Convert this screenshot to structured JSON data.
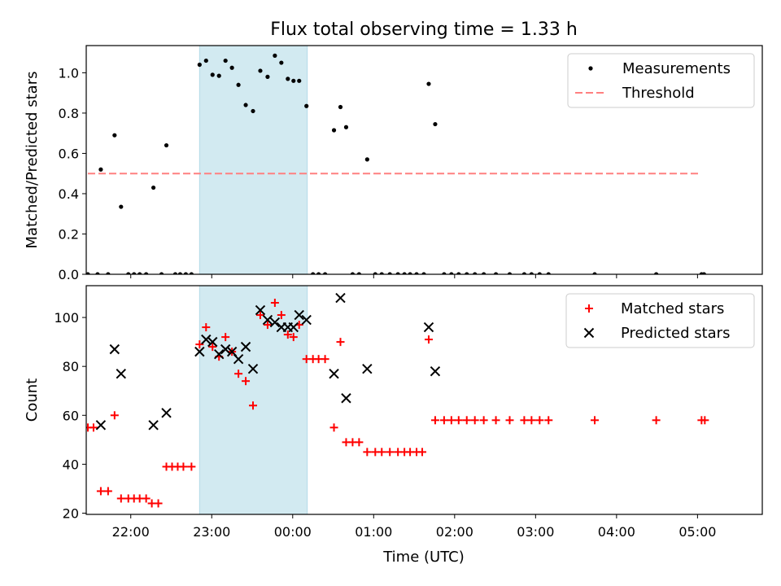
{
  "chart_data": [
    {
      "type": "scatter",
      "title": "Flux total observing time = 1.33 h",
      "ylabel": "Matched/Predicted stars",
      "xlabel": "",
      "xlim": [
        -2.55,
        5.8
      ],
      "ylim": [
        0,
        1.135
      ],
      "yticks": [
        "0.0",
        "0.2",
        "0.4",
        "0.6",
        "0.8",
        "1.0"
      ],
      "ytick_values": [
        0,
        0.2,
        0.4,
        0.6,
        0.8,
        1.0
      ],
      "shaded_span": [
        -1.15,
        0.18
      ],
      "shade_color": "#add8e6",
      "threshold": {
        "name": "Threshold",
        "value": 0.5,
        "x_start": -2.53,
        "x_end": 5.03,
        "color": "#ff8080"
      },
      "legend": {
        "position": "top-right",
        "entries": [
          "Measurements",
          "Threshold"
        ]
      },
      "series": [
        {
          "name": "Measurements",
          "marker": "dot",
          "color": "#000000",
          "points": [
            [
              -2.53,
              0
            ],
            [
              -2.41,
              0
            ],
            [
              -2.28,
              0
            ],
            [
              -2.37,
              0.52
            ],
            [
              -2.2,
              0.69
            ],
            [
              -2.12,
              0.335
            ],
            [
              -2.03,
              0
            ],
            [
              -1.96,
              0
            ],
            [
              -1.89,
              0
            ],
            [
              -1.81,
              0
            ],
            [
              -1.72,
              0.43
            ],
            [
              -1.62,
              0
            ],
            [
              -1.56,
              0.64
            ],
            [
              -1.45,
              0
            ],
            [
              -1.39,
              0
            ],
            [
              -1.32,
              0
            ],
            [
              -1.25,
              0
            ],
            [
              -1.15,
              1.04
            ],
            [
              -1.07,
              1.06
            ],
            [
              -0.99,
              0.99
            ],
            [
              -0.91,
              0.985
            ],
            [
              -0.83,
              1.06
            ],
            [
              -0.75,
              1.025
            ],
            [
              -0.67,
              0.94
            ],
            [
              -0.58,
              0.84
            ],
            [
              -0.49,
              0.81
            ],
            [
              -0.4,
              1.01
            ],
            [
              -0.31,
              0.98
            ],
            [
              -0.22,
              1.085
            ],
            [
              -0.14,
              1.05
            ],
            [
              -0.06,
              0.97
            ],
            [
              0.01,
              0.96
            ],
            [
              0.08,
              0.96
            ],
            [
              0.17,
              0.835
            ],
            [
              0.25,
              0
            ],
            [
              0.32,
              0
            ],
            [
              0.4,
              0
            ],
            [
              0.51,
              0.715
            ],
            [
              0.59,
              0.83
            ],
            [
              0.66,
              0.73
            ],
            [
              0.74,
              0
            ],
            [
              0.82,
              0
            ],
            [
              0.92,
              0.57
            ],
            [
              1.02,
              0
            ],
            [
              1.1,
              0
            ],
            [
              1.2,
              0
            ],
            [
              1.3,
              0
            ],
            [
              1.38,
              0
            ],
            [
              1.45,
              0
            ],
            [
              1.53,
              0
            ],
            [
              1.62,
              0
            ],
            [
              1.68,
              0.945
            ],
            [
              1.76,
              0.745
            ],
            [
              1.87,
              0
            ],
            [
              1.96,
              0
            ],
            [
              2.05,
              0
            ],
            [
              2.15,
              0
            ],
            [
              2.25,
              0
            ],
            [
              2.36,
              0
            ],
            [
              2.51,
              0
            ],
            [
              2.68,
              0
            ],
            [
              2.86,
              0
            ],
            [
              2.95,
              0
            ],
            [
              3.05,
              0
            ],
            [
              3.16,
              0
            ],
            [
              3.73,
              0
            ],
            [
              4.49,
              0
            ],
            [
              5.05,
              0
            ],
            [
              5.08,
              0
            ]
          ]
        }
      ]
    },
    {
      "type": "scatter",
      "title": "",
      "ylabel": "Count",
      "xlabel": "Time (UTC)",
      "xlim": [
        -2.55,
        5.8
      ],
      "ylim": [
        19.5,
        113
      ],
      "yticks": [
        "20",
        "40",
        "60",
        "80",
        "100"
      ],
      "ytick_values": [
        20,
        40,
        60,
        80,
        100
      ],
      "xticks": [
        "22:00",
        "23:00",
        "00:00",
        "01:00",
        "02:00",
        "03:00",
        "04:00",
        "05:00"
      ],
      "xtick_values": [
        -2,
        -1,
        0,
        1,
        2,
        3,
        4,
        5
      ],
      "shaded_span": [
        -1.15,
        0.18
      ],
      "shade_color": "#add8e6",
      "legend": {
        "position": "top-right",
        "entries": [
          "Matched stars",
          "Predicted stars"
        ]
      },
      "series": [
        {
          "name": "Matched stars",
          "marker": "plus",
          "color": "#ff0000",
          "points": [
            [
              -2.53,
              55
            ],
            [
              -2.46,
              55
            ],
            [
              -2.37,
              29
            ],
            [
              -2.28,
              29
            ],
            [
              -2.2,
              60
            ],
            [
              -2.12,
              26
            ],
            [
              -2.03,
              26
            ],
            [
              -1.96,
              26
            ],
            [
              -1.89,
              26
            ],
            [
              -1.81,
              26
            ],
            [
              -1.74,
              24
            ],
            [
              -1.66,
              24
            ],
            [
              -1.56,
              39
            ],
            [
              -1.49,
              39
            ],
            [
              -1.42,
              39
            ],
            [
              -1.35,
              39
            ],
            [
              -1.25,
              39
            ],
            [
              -1.15,
              89
            ],
            [
              -1.07,
              96
            ],
            [
              -0.99,
              88
            ],
            [
              -0.91,
              84
            ],
            [
              -0.83,
              92
            ],
            [
              -0.75,
              86
            ],
            [
              -0.67,
              77
            ],
            [
              -0.58,
              74
            ],
            [
              -0.49,
              64
            ],
            [
              -0.4,
              101
            ],
            [
              -0.31,
              97
            ],
            [
              -0.22,
              106
            ],
            [
              -0.14,
              101
            ],
            [
              -0.06,
              93
            ],
            [
              0.01,
              92
            ],
            [
              0.08,
              97
            ],
            [
              0.17,
              83
            ],
            [
              0.25,
              83
            ],
            [
              0.32,
              83
            ],
            [
              0.4,
              83
            ],
            [
              0.51,
              55
            ],
            [
              0.59,
              90
            ],
            [
              0.66,
              49
            ],
            [
              0.74,
              49
            ],
            [
              0.82,
              49
            ],
            [
              0.92,
              45
            ],
            [
              1.02,
              45
            ],
            [
              1.1,
              45
            ],
            [
              1.2,
              45
            ],
            [
              1.3,
              45
            ],
            [
              1.38,
              45
            ],
            [
              1.45,
              45
            ],
            [
              1.53,
              45
            ],
            [
              1.6,
              45
            ],
            [
              1.68,
              91
            ],
            [
              1.76,
              58
            ],
            [
              1.87,
              58
            ],
            [
              1.96,
              58
            ],
            [
              2.05,
              58
            ],
            [
              2.15,
              58
            ],
            [
              2.25,
              58
            ],
            [
              2.36,
              58
            ],
            [
              2.51,
              58
            ],
            [
              2.68,
              58
            ],
            [
              2.86,
              58
            ],
            [
              2.95,
              58
            ],
            [
              3.05,
              58
            ],
            [
              3.16,
              58
            ],
            [
              3.73,
              58
            ],
            [
              4.49,
              58
            ],
            [
              5.05,
              58
            ],
            [
              5.09,
              58
            ]
          ]
        },
        {
          "name": "Predicted stars",
          "marker": "x",
          "color": "#000000",
          "points": [
            [
              -2.37,
              56
            ],
            [
              -2.2,
              87
            ],
            [
              -2.12,
              77
            ],
            [
              -1.72,
              56
            ],
            [
              -1.56,
              61
            ],
            [
              -1.15,
              86
            ],
            [
              -1.07,
              91
            ],
            [
              -0.99,
              90
            ],
            [
              -0.91,
              85
            ],
            [
              -0.83,
              87
            ],
            [
              -0.75,
              86
            ],
            [
              -0.67,
              83
            ],
            [
              -0.58,
              88
            ],
            [
              -0.49,
              79
            ],
            [
              -0.4,
              103
            ],
            [
              -0.31,
              99
            ],
            [
              -0.22,
              98
            ],
            [
              -0.14,
              96
            ],
            [
              -0.06,
              96
            ],
            [
              0.01,
              96
            ],
            [
              0.08,
              101
            ],
            [
              0.17,
              99
            ],
            [
              0.51,
              77
            ],
            [
              0.59,
              108
            ],
            [
              0.66,
              67
            ],
            [
              0.92,
              79
            ],
            [
              1.68,
              96
            ],
            [
              1.76,
              78
            ]
          ]
        }
      ]
    }
  ]
}
